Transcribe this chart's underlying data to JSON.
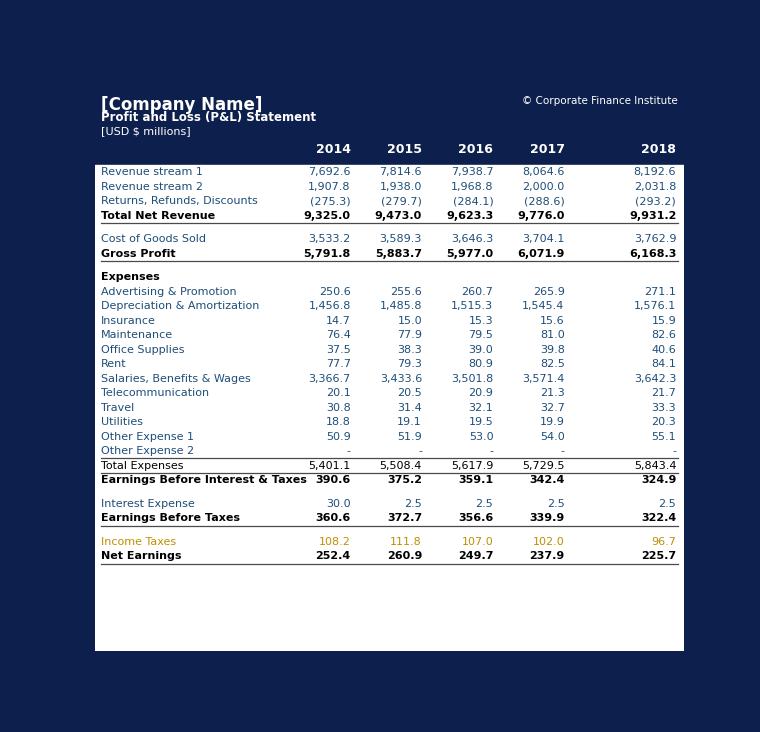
{
  "title": "[Company Name]",
  "subtitle": "Profit and Loss (P&L) Statement",
  "unit": "[USD $ millions]",
  "copyright": "© Corporate Finance Institute",
  "years": [
    "2014",
    "2015",
    "2016",
    "2017",
    "2018"
  ],
  "header_bg": "#0d1f4c",
  "normal_color": "#1f4e79",
  "tax_color": "#bf8f00",
  "rows": [
    {
      "label": "Revenue stream 1",
      "values": [
        "7,692.6",
        "7,814.6",
        "7,938.7",
        "8,064.6",
        "8,192.6"
      ],
      "style": "normal"
    },
    {
      "label": "Revenue stream 2",
      "values": [
        "1,907.8",
        "1,938.0",
        "1,968.8",
        "2,000.0",
        "2,031.8"
      ],
      "style": "normal"
    },
    {
      "label": "Returns, Refunds, Discounts",
      "values": [
        "(275.3)",
        "(279.7)",
        "(284.1)",
        "(288.6)",
        "(293.2)"
      ],
      "style": "normal"
    },
    {
      "label": "Total Net Revenue",
      "values": [
        "9,325.0",
        "9,473.0",
        "9,623.3",
        "9,776.0",
        "9,931.2"
      ],
      "style": "bold_bottom"
    },
    {
      "label": "",
      "values": [
        "",
        "",
        "",
        "",
        ""
      ],
      "style": "spacer"
    },
    {
      "label": "Cost of Goods Sold",
      "values": [
        "3,533.2",
        "3,589.3",
        "3,646.3",
        "3,704.1",
        "3,762.9"
      ],
      "style": "normal"
    },
    {
      "label": "Gross Profit",
      "values": [
        "5,791.8",
        "5,883.7",
        "5,977.0",
        "6,071.9",
        "6,168.3"
      ],
      "style": "bold_bottom"
    },
    {
      "label": "",
      "values": [
        "",
        "",
        "",
        "",
        ""
      ],
      "style": "spacer"
    },
    {
      "label": "Expenses",
      "values": [
        "",
        "",
        "",
        "",
        ""
      ],
      "style": "bold_label"
    },
    {
      "label": "Advertising & Promotion",
      "values": [
        "250.6",
        "255.6",
        "260.7",
        "265.9",
        "271.1"
      ],
      "style": "normal"
    },
    {
      "label": "Depreciation & Amortization",
      "values": [
        "1,456.8",
        "1,485.8",
        "1,515.3",
        "1,545.4",
        "1,576.1"
      ],
      "style": "normal"
    },
    {
      "label": "Insurance",
      "values": [
        "14.7",
        "15.0",
        "15.3",
        "15.6",
        "15.9"
      ],
      "style": "normal"
    },
    {
      "label": "Maintenance",
      "values": [
        "76.4",
        "77.9",
        "79.5",
        "81.0",
        "82.6"
      ],
      "style": "normal"
    },
    {
      "label": "Office Supplies",
      "values": [
        "37.5",
        "38.3",
        "39.0",
        "39.8",
        "40.6"
      ],
      "style": "normal"
    },
    {
      "label": "Rent",
      "values": [
        "77.7",
        "79.3",
        "80.9",
        "82.5",
        "84.1"
      ],
      "style": "normal"
    },
    {
      "label": "Salaries, Benefits & Wages",
      "values": [
        "3,366.7",
        "3,433.6",
        "3,501.8",
        "3,571.4",
        "3,642.3"
      ],
      "style": "normal"
    },
    {
      "label": "Telecommunication",
      "values": [
        "20.1",
        "20.5",
        "20.9",
        "21.3",
        "21.7"
      ],
      "style": "normal"
    },
    {
      "label": "Travel",
      "values": [
        "30.8",
        "31.4",
        "32.1",
        "32.7",
        "33.3"
      ],
      "style": "normal"
    },
    {
      "label": "Utilities",
      "values": [
        "18.8",
        "19.1",
        "19.5",
        "19.9",
        "20.3"
      ],
      "style": "normal"
    },
    {
      "label": "Other Expense 1",
      "values": [
        "50.9",
        "51.9",
        "53.0",
        "54.0",
        "55.1"
      ],
      "style": "normal"
    },
    {
      "label": "Other Expense 2",
      "values": [
        "-",
        "-",
        "-",
        "-",
        "-"
      ],
      "style": "normal"
    },
    {
      "label": "Total Expenses",
      "values": [
        "5,401.1",
        "5,508.4",
        "5,617.9",
        "5,729.5",
        "5,843.4"
      ],
      "style": "normal_top_bottom"
    },
    {
      "label": "Earnings Before Interest & Taxes",
      "values": [
        "390.6",
        "375.2",
        "359.1",
        "342.4",
        "324.9"
      ],
      "style": "bold"
    },
    {
      "label": "",
      "values": [
        "",
        "",
        "",
        "",
        ""
      ],
      "style": "spacer"
    },
    {
      "label": "Interest Expense",
      "values": [
        "30.0",
        "2.5",
        "2.5",
        "2.5",
        "2.5"
      ],
      "style": "normal"
    },
    {
      "label": "Earnings Before Taxes",
      "values": [
        "360.6",
        "372.7",
        "356.6",
        "339.9",
        "322.4"
      ],
      "style": "bold_bottom"
    },
    {
      "label": "",
      "values": [
        "",
        "",
        "",
        "",
        ""
      ],
      "style": "spacer"
    },
    {
      "label": "Income Taxes",
      "values": [
        "108.2",
        "111.8",
        "107.0",
        "102.0",
        "96.7"
      ],
      "style": "tax"
    },
    {
      "label": "Net Earnings",
      "values": [
        "252.4",
        "260.9",
        "249.7",
        "237.9",
        "225.7"
      ],
      "style": "bold_bottom"
    }
  ]
}
